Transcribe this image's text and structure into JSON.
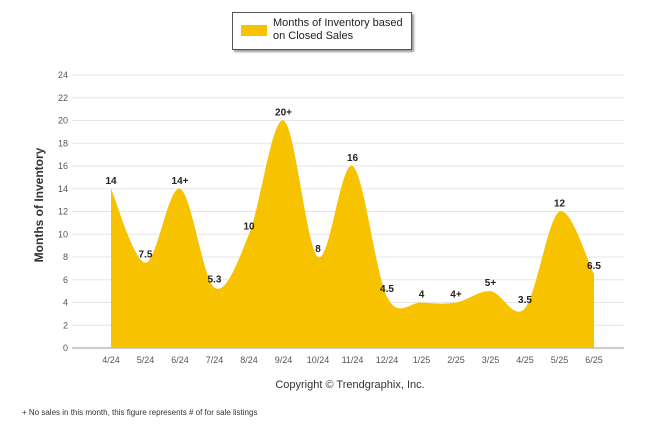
{
  "chart_data": {
    "type": "area",
    "legend": "Months of Inventory based on Closed Sales",
    "ylabel": "Months of Inventory",
    "xlabel": "",
    "ylim": [
      0,
      24
    ],
    "yticks": [
      0,
      2,
      4,
      6,
      8,
      10,
      12,
      14,
      16,
      18,
      20,
      22,
      24
    ],
    "categories": [
      "4/24",
      "5/24",
      "6/24",
      "7/24",
      "8/24",
      "9/24",
      "10/24",
      "11/24",
      "12/24",
      "1/25",
      "2/25",
      "3/25",
      "4/25",
      "5/25",
      "6/25"
    ],
    "values": [
      14,
      7.5,
      14,
      5.3,
      10,
      20,
      8,
      16,
      4.5,
      4,
      4,
      5,
      3.5,
      12,
      6.5
    ],
    "data_labels": [
      "14",
      "7.5",
      "14+",
      "5.3",
      "10",
      "20+",
      "8",
      "16",
      "4.5",
      "4",
      "4+",
      "5+",
      "3.5",
      "12",
      "6.5"
    ],
    "color": "#f7c200",
    "grid": true,
    "legend_position": "top-center"
  },
  "copyright": "Copyright © Trendgraphix, Inc.",
  "footnote": "+  No sales in this month, this figure represents # of for sale listings"
}
